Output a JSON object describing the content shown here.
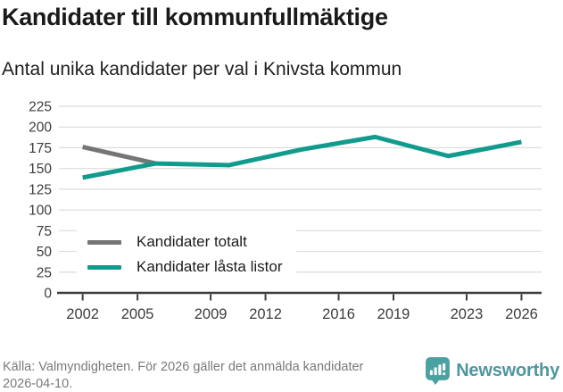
{
  "header": {
    "title": "Kandidater till kommunfullmäktige",
    "subtitle": "Antal unika kandidater per val i Knivsta kommun"
  },
  "chart_data": {
    "type": "line",
    "title": "Kandidater till kommunfullmäktige",
    "subtitle": "Antal unika kandidater per val i Knivsta kommun",
    "x": [
      2002,
      2006,
      2010,
      2014,
      2018,
      2022,
      2026
    ],
    "series": [
      {
        "name": "Kandidater totalt",
        "color": "#757575",
        "x": [
          2002,
          2006
        ],
        "values": [
          176,
          156
        ]
      },
      {
        "name": "Kandidater låsta listor",
        "color": "#109b8d",
        "x": [
          2002,
          2006,
          2010,
          2014,
          2018,
          2022,
          2026
        ],
        "values": [
          139,
          156,
          154,
          173,
          188,
          165,
          182
        ]
      }
    ],
    "x_tick_labels": [
      2002,
      2005,
      2009,
      2012,
      2016,
      2019,
      2023,
      2026
    ],
    "y_ticks": [
      0,
      25,
      50,
      75,
      100,
      125,
      150,
      175,
      200,
      225
    ],
    "xlim": [
      2000.7,
      2027.1
    ],
    "ylim": [
      0,
      225
    ],
    "grid": true,
    "legend_position": "inside-bottom-left"
  },
  "legend": {
    "items": [
      {
        "label": "Kandidater totalt",
        "color": "#757575"
      },
      {
        "label": "Kandidater låsta listor",
        "color": "#109b8d"
      }
    ]
  },
  "footer": {
    "source": "Källa: Valmyndigheten. För 2026 gäller det anmälda kandidater 2026-04-10.",
    "brand": "Newsworthy"
  },
  "colors": {
    "accent_teal": "#109b8d",
    "series_gray": "#757575",
    "axis_text": "#3c3c3c",
    "grid_line": "#dcdcdc",
    "footer_text": "#7a7a7a",
    "logo_icon_teal": "#4ba1a1",
    "logo_text_teal": "#4f96a0"
  }
}
